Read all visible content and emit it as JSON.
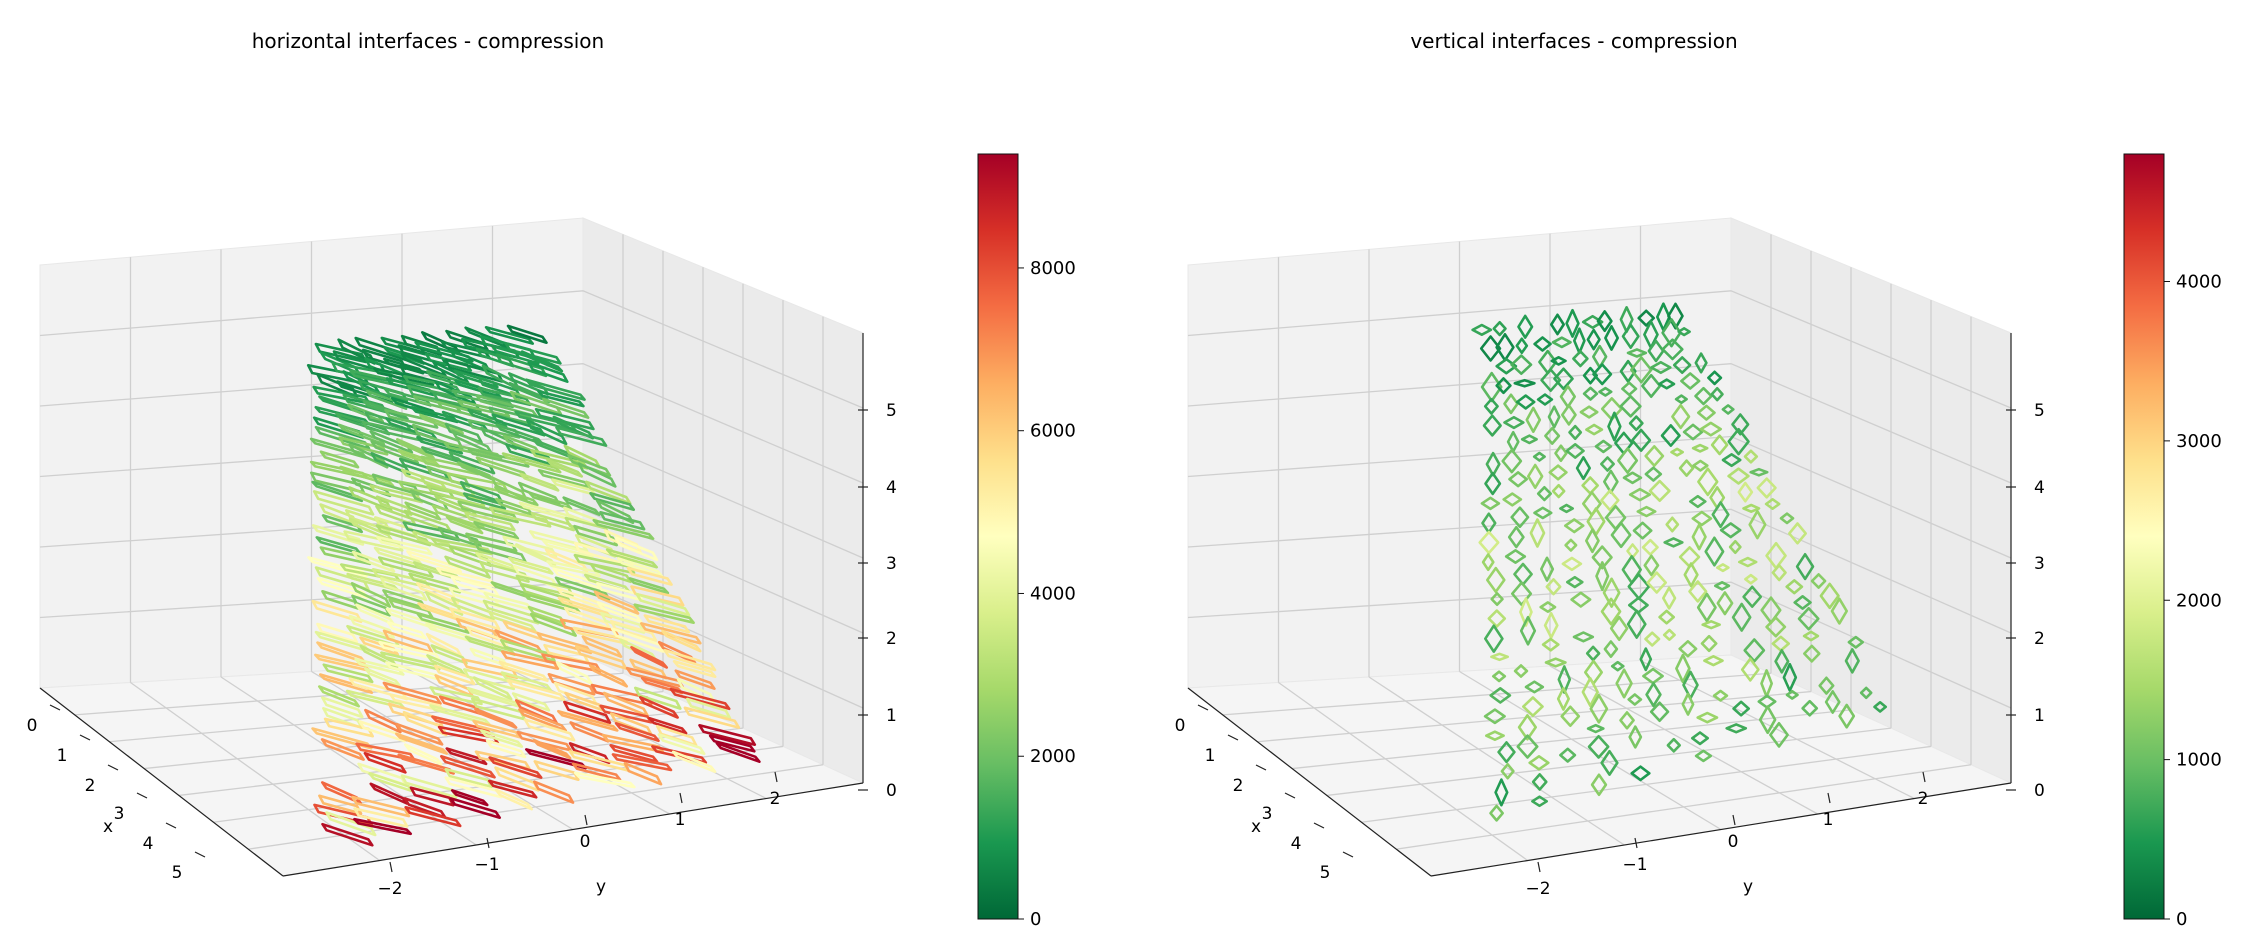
{
  "figure": {
    "panels": [
      {
        "title": "horizontal interfaces - compression",
        "axis_labels": {
          "x": "x",
          "y": "y"
        }
      },
      {
        "title": "vertical interfaces - compression",
        "axis_labels": {
          "x": "x",
          "y": "y"
        }
      }
    ]
  },
  "chart_data": [
    {
      "type": "3d-wireframe-patches",
      "title": "horizontal interfaces - compression",
      "xlabel": "x",
      "ylabel": "y",
      "zlabel": "",
      "xlim": [
        0,
        5.5
      ],
      "ylim": [
        -2.6,
        2.6
      ],
      "zlim": [
        0,
        5.8
      ],
      "x_ticks": [
        "0",
        "1",
        "2",
        "3",
        "4",
        "5"
      ],
      "y_ticks": [
        "−2",
        "−1",
        "0",
        "1",
        "2"
      ],
      "z_ticks": [
        "0",
        "1",
        "2",
        "3",
        "4",
        "5"
      ],
      "colorbar": {
        "cmap": "RdYlGn_r",
        "range": [
          0,
          9400
        ],
        "ticks": [
          "0",
          "2000",
          "4000",
          "6000",
          "8000"
        ],
        "tick_values": [
          0,
          2000,
          4000,
          6000,
          8000
        ]
      },
      "interface_orientation": "horizontal",
      "stress_profile": {
        "top": 600,
        "middle": 3600,
        "bottom": 7200
      },
      "colors": {
        "low": "#006837",
        "mid": "#ffffbf",
        "high": "#a50026"
      }
    },
    {
      "type": "3d-wireframe-patches",
      "title": "vertical interfaces - compression",
      "xlabel": "x",
      "ylabel": "y",
      "zlabel": "",
      "xlim": [
        0,
        5.5
      ],
      "ylim": [
        -2.6,
        2.6
      ],
      "zlim": [
        0,
        5.8
      ],
      "x_ticks": [
        "0",
        "1",
        "2",
        "3",
        "4",
        "5"
      ],
      "y_ticks": [
        "−2",
        "−1",
        "0",
        "1",
        "2"
      ],
      "z_ticks": [
        "0",
        "1",
        "2",
        "3",
        "4",
        "5"
      ],
      "colorbar": {
        "cmap": "RdYlGn_r",
        "range": [
          0,
          4800
        ],
        "ticks": [
          "0",
          "1000",
          "2000",
          "3000",
          "4000"
        ],
        "tick_values": [
          0,
          1000,
          2000,
          3000,
          4000
        ]
      },
      "interface_orientation": "vertical",
      "stress_profile": {
        "top": 500,
        "middle": 1400,
        "bottom": 900
      },
      "colors": {
        "low": "#006837",
        "mid": "#ffffbf",
        "high": "#a50026"
      }
    }
  ]
}
